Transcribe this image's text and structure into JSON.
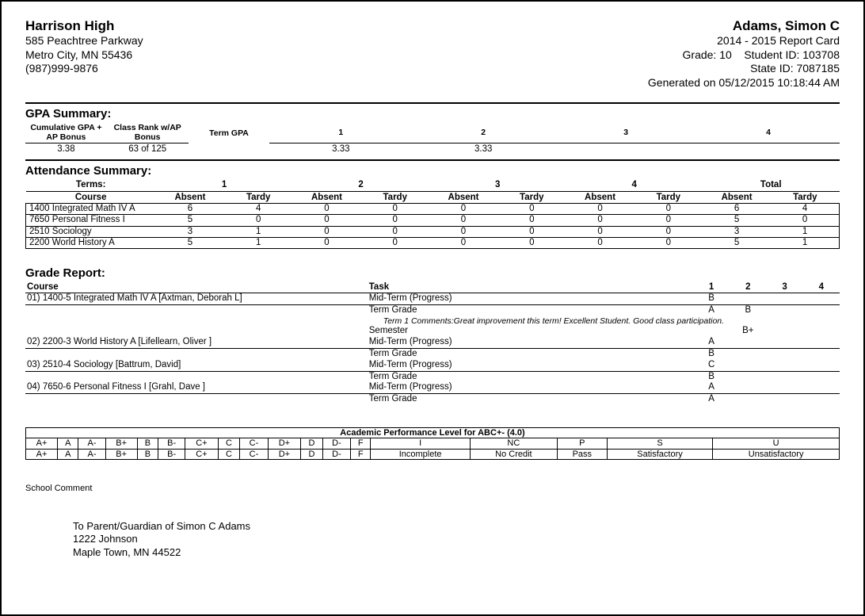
{
  "header": {
    "school_name": "Harrison High",
    "school_addr1": "585 Peachtree Parkway",
    "school_addr2": "Metro City, MN 55436",
    "school_phone": "(987)999-9876",
    "student_name": "Adams, Simon C",
    "report_card_year": "2014 - 2015 Report Card",
    "grade_label": "Grade: 10",
    "student_id_label": "Student ID: 103708",
    "state_id_label": "State ID: 7087185",
    "generated_label": "Generated on 05/12/2015 10:18:44 AM"
  },
  "gpa": {
    "section_title": "GPA Summary:",
    "col_cum": "Cumulative GPA + AP Bonus",
    "col_rank": "Class Rank w/AP Bonus",
    "col_term": "Term GPA",
    "t1": "1",
    "t2": "2",
    "t3": "3",
    "t4": "4",
    "val_cum": "3.38",
    "val_rank": "63 of 125",
    "val_t1": "3.33",
    "val_t2": "3.33",
    "val_t3": "",
    "val_t4": ""
  },
  "attendance": {
    "section_title": "Attendance Summary:",
    "terms_label": "Terms:",
    "t1": "1",
    "t2": "2",
    "t3": "3",
    "t4": "4",
    "total": "Total",
    "course_h": "Course",
    "absent_h": "Absent",
    "tardy_h": "Tardy",
    "rows": [
      {
        "course": "1400 Integrated Math IV A",
        "a1": "6",
        "t1": "4",
        "a2": "0",
        "t2": "0",
        "a3": "0",
        "t3": "0",
        "a4": "0",
        "t4": "0",
        "at": "6",
        "tt": "4"
      },
      {
        "course": "7650 Personal Fitness I",
        "a1": "5",
        "t1": "0",
        "a2": "0",
        "t2": "0",
        "a3": "0",
        "t3": "0",
        "a4": "0",
        "t4": "0",
        "at": "5",
        "tt": "0"
      },
      {
        "course": "2510 Sociology",
        "a1": "3",
        "t1": "1",
        "a2": "0",
        "t2": "0",
        "a3": "0",
        "t3": "0",
        "a4": "0",
        "t4": "0",
        "at": "3",
        "tt": "1"
      },
      {
        "course": "2200 World History A",
        "a1": "5",
        "t1": "1",
        "a2": "0",
        "t2": "0",
        "a3": "0",
        "t3": "0",
        "a4": "0",
        "t4": "0",
        "at": "5",
        "tt": "1"
      }
    ]
  },
  "grades": {
    "section_title": "Grade Report:",
    "course_h": "Course",
    "task_h": "Task",
    "t1": "1",
    "t2": "2",
    "t3": "3",
    "t4": "4",
    "courses": [
      {
        "name": "01) 1400-5 Integrated Math IV A [Axtman, Deborah L]",
        "rows": [
          {
            "task": "Mid-Term (Progress)",
            "g1": "B",
            "g2": "",
            "g3": "",
            "g4": ""
          },
          {
            "task": "Term Grade",
            "g1": "A",
            "g2": "B",
            "g3": "",
            "g4": ""
          },
          {
            "task": "Semester",
            "g1": "",
            "g2": "B+",
            "g3": "",
            "g4": "",
            "topbar": false
          },
          {
            "task": "Term 1 Comments:Great improvement this term! Excellent Student. Good class participation.",
            "italic": true,
            "before_semester": true
          }
        ]
      },
      {
        "name": "02) 2200-3 World History A [Lifellearn, Oliver ]",
        "rows": [
          {
            "task": "Mid-Term (Progress)",
            "g1": "A",
            "g2": "",
            "g3": "",
            "g4": ""
          },
          {
            "task": "Term Grade",
            "g1": "B",
            "g2": "",
            "g3": "",
            "g4": ""
          }
        ]
      },
      {
        "name": "03) 2510-4 Sociology  [Battrum, David]",
        "rows": [
          {
            "task": "Mid-Term (Progress)",
            "g1": "C",
            "g2": "",
            "g3": "",
            "g4": ""
          },
          {
            "task": "Term Grade",
            "g1": "B",
            "g2": "",
            "g3": "",
            "g4": ""
          }
        ]
      },
      {
        "name": "04) 7650-6 Personal Fitness I [Grahl, Dave ]",
        "rows": [
          {
            "task": "Mid-Term (Progress)",
            "g1": "A",
            "g2": "",
            "g3": "",
            "g4": ""
          },
          {
            "task": "Term Grade",
            "g1": "A",
            "g2": "",
            "g3": "",
            "g4": ""
          }
        ]
      }
    ]
  },
  "perf": {
    "title": "Academic Performance Level for ABC+- (4.0)",
    "row1": [
      "A+",
      "A",
      "A-",
      "B+",
      "B",
      "B-",
      "C+",
      "C",
      "C-",
      "D+",
      "D",
      "D-",
      "F",
      "I",
      "NC",
      "P",
      "S",
      "U"
    ],
    "row2": [
      "A+",
      "A",
      "A-",
      "B+",
      "B",
      "B-",
      "C+",
      "C",
      "C-",
      "D+",
      "D",
      "D-",
      "F",
      "Incomplete",
      "No Credit",
      "Pass",
      "Satisfactory",
      "Unsatisfactory"
    ]
  },
  "footer": {
    "school_comment_label": "School Comment",
    "addr_line1": "To Parent/Guardian of Simon C Adams",
    "addr_line2": "1222 Johnson",
    "addr_line3": "Maple Town, MN 44522"
  }
}
